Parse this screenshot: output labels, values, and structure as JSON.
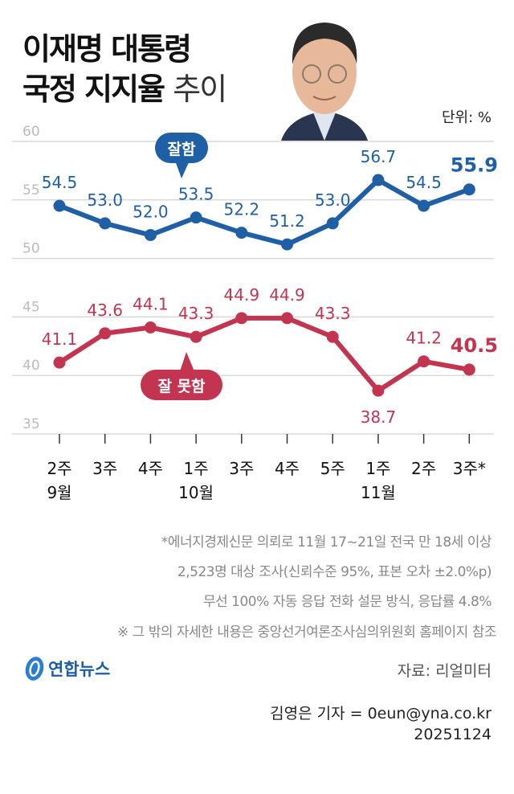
{
  "title": {
    "line1": "이재명 대통령",
    "line2_bold": "국정 지지율",
    "line2_light": "추이"
  },
  "unit": "단위: %",
  "chart_data": {
    "type": "line",
    "categories": [
      "2주",
      "3주",
      "4주",
      "1주",
      "3주",
      "4주",
      "5주",
      "1주",
      "2주",
      "3주*"
    ],
    "month_labels": [
      {
        "index": 0,
        "label": "9월"
      },
      {
        "index": 3,
        "label": "10월"
      },
      {
        "index": 7,
        "label": "11월"
      }
    ],
    "ylim": [
      35,
      60
    ],
    "yticks": [
      60,
      55,
      50,
      45,
      40,
      35
    ],
    "grid": true,
    "series": [
      {
        "name": "잘함",
        "color": "#1f5fa6",
        "values": [
          54.5,
          53.0,
          52.0,
          53.5,
          52.2,
          51.2,
          53.0,
          56.7,
          54.5,
          55.9
        ],
        "labels": [
          "54.5",
          "53.0",
          "52.0",
          "53.5",
          "52.2",
          "51.2",
          "53.0",
          "56.7",
          "54.5",
          "55.9"
        ]
      },
      {
        "name": "잘 못함",
        "color": "#c2344f",
        "values": [
          41.1,
          43.6,
          44.1,
          43.3,
          44.9,
          44.9,
          43.3,
          38.7,
          41.2,
          40.5
        ],
        "labels": [
          "41.1",
          "43.6",
          "44.1",
          "43.3",
          "44.9",
          "44.9",
          "43.3",
          "38.7",
          "41.2",
          "40.5"
        ]
      }
    ]
  },
  "notes": [
    "*에너지경제신문 의뢰로 11월 17~21일 전국 만 18세 이상",
    "2,523명 대상 조사(신뢰수준 95%, 표본 오차 ±2.0%p)",
    "무선 100% 자동 응답 전화 설문 방식, 응답률 4.8%",
    "※ 그 밖의 자세한 내용은 중앙선거여론조사심의위원회 홈페이지 참조"
  ],
  "logo": "연합뉴스",
  "source": "자료: 리얼미터",
  "credit": "김영은 기자 = 0eun@yna.co.kr",
  "date": "20251124"
}
